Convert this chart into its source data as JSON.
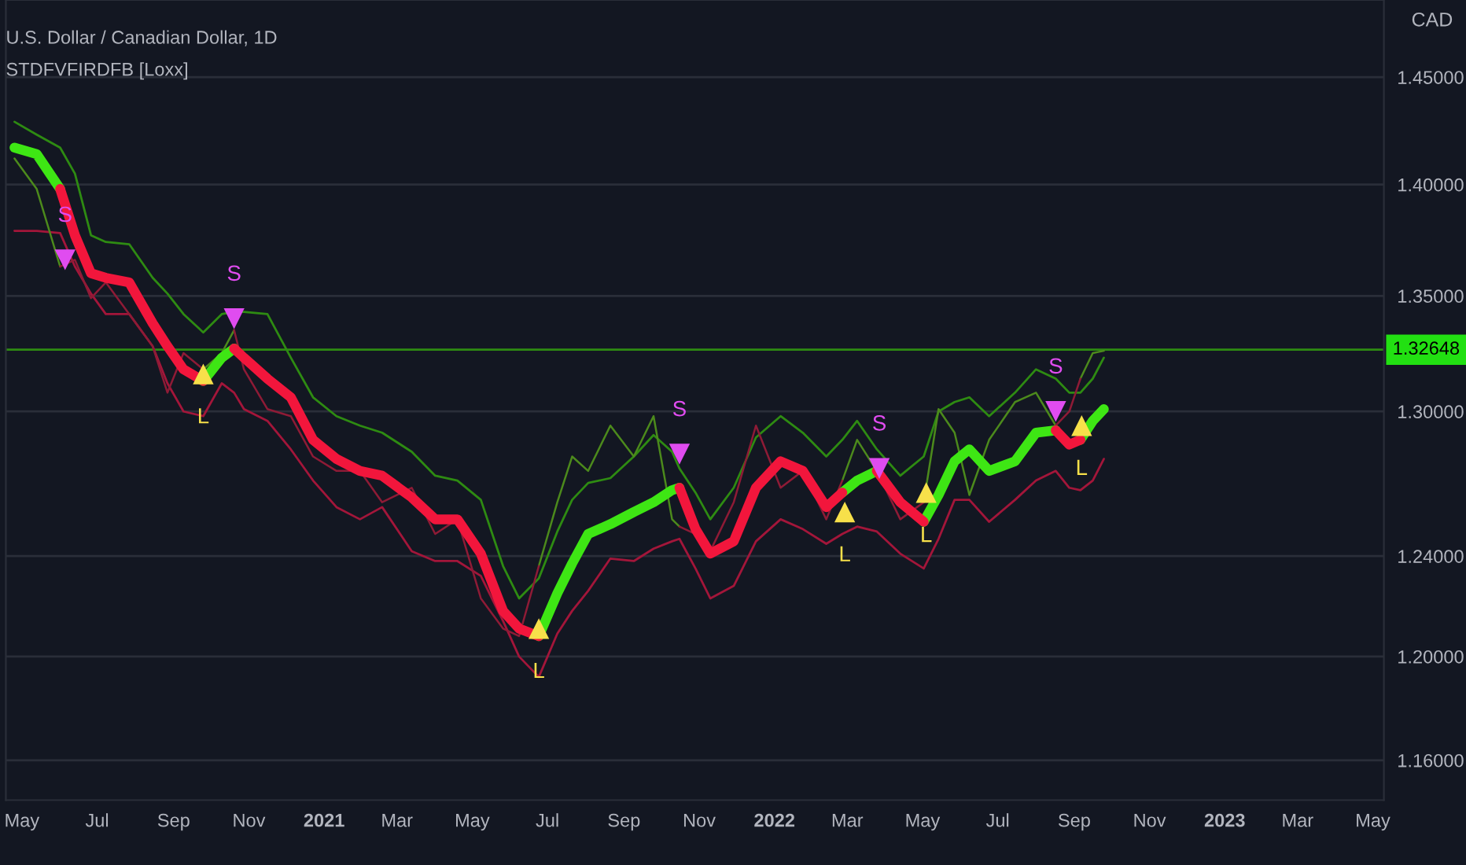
{
  "chart_data": {
    "type": "line",
    "title": "U.S. Dollar / Canadian Dollar, 1D",
    "subtitle": "STDFVFIRDFB [Loxx]",
    "ylabel": "CAD",
    "x": [
      "2020-04-25",
      "2020-05-13",
      "2020-06-01",
      "2020-06-13",
      "2020-06-26",
      "2020-07-08",
      "2020-07-27",
      "2020-08-15",
      "2020-08-27",
      "2020-09-09",
      "2020-09-25",
      "2020-10-10",
      "2020-10-20",
      "2020-10-28",
      "2020-11-16",
      "2020-12-05",
      "2020-12-23",
      "2021-01-11",
      "2021-01-30",
      "2021-02-17",
      "2021-03-13",
      "2021-04-01",
      "2021-04-19",
      "2021-05-08",
      "2021-05-26",
      "2021-06-08",
      "2021-06-24",
      "2021-07-09",
      "2021-07-21",
      "2021-08-03",
      "2021-08-21",
      "2021-09-09",
      "2021-09-25",
      "2021-10-10",
      "2021-10-16",
      "2021-10-29",
      "2021-11-10",
      "2021-11-29",
      "2021-12-17",
      "2022-01-06",
      "2022-01-24",
      "2022-02-12",
      "2022-02-25",
      "2022-03-09",
      "2022-03-25",
      "2022-04-13",
      "2022-05-02",
      "2022-05-14",
      "2022-05-27",
      "2022-06-08",
      "2022-06-24",
      "2022-07-15",
      "2022-08-01",
      "2022-08-17",
      "2022-08-28",
      "2022-09-06",
      "2022-09-16",
      "2022-09-25"
    ],
    "series": [
      {
        "color": "#2e8b12",
        "values": [
          1.429,
          1.423,
          1.417,
          1.405,
          1.377,
          1.374,
          1.373,
          1.358,
          1.351,
          1.342,
          1.334,
          1.342,
          1.343,
          1.343,
          1.342,
          1.323,
          1.306,
          1.298,
          1.294,
          1.291,
          1.283,
          1.273,
          1.271,
          1.263,
          1.236,
          1.223,
          1.231,
          1.25,
          1.263,
          1.27,
          1.272,
          1.281,
          1.29,
          1.283,
          1.276,
          1.266,
          1.255,
          1.268,
          1.289,
          1.298,
          1.291,
          1.281,
          1.288,
          1.296,
          1.284,
          1.273,
          1.281,
          1.3,
          1.304,
          1.306,
          1.298,
          1.308,
          1.318,
          1.314,
          1.308,
          1.308,
          1.314,
          1.323
        ]
      },
      {
        "color": "#a3163a",
        "values": [
          1.379,
          1.379,
          1.378,
          1.363,
          1.351,
          1.342,
          1.342,
          1.328,
          1.312,
          1.3,
          1.298,
          1.312,
          1.308,
          1.301,
          1.296,
          1.284,
          1.271,
          1.26,
          1.255,
          1.26,
          1.242,
          1.238,
          1.238,
          1.232,
          1.214,
          1.2,
          1.192,
          1.209,
          1.218,
          1.226,
          1.239,
          1.238,
          1.243,
          1.246,
          1.247,
          1.235,
          1.223,
          1.228,
          1.246,
          1.255,
          1.251,
          1.245,
          1.249,
          1.252,
          1.25,
          1.241,
          1.235,
          1.247,
          1.263,
          1.263,
          1.254,
          1.263,
          1.271,
          1.275,
          1.268,
          1.267,
          1.271,
          1.28
        ]
      },
      {
        "color": "#4c8a1c",
        "values": [
          1.412,
          1.398,
          1.363,
          null,
          null,
          null,
          null,
          null,
          null,
          null,
          1.318,
          1.325,
          1.335,
          null,
          null,
          null,
          null,
          null,
          null,
          null,
          null,
          null,
          null,
          null,
          null,
          null,
          1.236,
          1.262,
          1.281,
          1.275,
          1.294,
          1.281,
          1.298,
          1.255,
          1.252,
          null,
          null,
          null,
          null,
          null,
          null,
          null,
          1.271,
          1.288,
          1.275,
          null,
          1.262,
          1.301,
          1.291,
          1.265,
          1.288,
          1.304,
          1.308,
          1.294,
          null,
          1.314,
          1.325,
          1.326
        ]
      },
      {
        "color": "#8e1b36",
        "values": [
          null,
          null,
          1.363,
          1.366,
          1.349,
          1.356,
          1.342,
          1.328,
          1.308,
          1.325,
          1.318,
          null,
          1.335,
          1.318,
          1.301,
          1.298,
          1.281,
          1.275,
          1.275,
          1.262,
          1.268,
          1.249,
          1.255,
          1.223,
          1.211,
          1.208,
          1.236,
          null,
          null,
          null,
          null,
          null,
          null,
          null,
          1.252,
          1.249,
          1.242,
          1.262,
          1.294,
          1.268,
          1.275,
          1.255,
          1.271,
          null,
          1.275,
          1.255,
          1.262,
          null,
          null,
          null,
          null,
          null,
          null,
          1.294,
          1.3,
          1.314,
          null,
          null
        ]
      },
      {
        "color": "#3ee614",
        "values": [
          1.417,
          1.414,
          1.398,
          null,
          null,
          null,
          null,
          null,
          null,
          null,
          1.313,
          1.323,
          1.327,
          null,
          null,
          null,
          null,
          null,
          null,
          null,
          null,
          null,
          null,
          null,
          null,
          null,
          1.208,
          1.225,
          1.237,
          1.249,
          1.253,
          1.258,
          1.262,
          1.267,
          1.268,
          null,
          null,
          null,
          null,
          null,
          null,
          null,
          1.266,
          1.271,
          1.275,
          null,
          1.254,
          1.265,
          1.279,
          1.284,
          1.275,
          1.279,
          1.291,
          1.292,
          null,
          1.288,
          1.296,
          1.301
        ]
      },
      {
        "color": "#f2163c",
        "values": [
          null,
          null,
          1.398,
          1.377,
          1.36,
          1.358,
          1.356,
          1.338,
          1.328,
          1.318,
          1.313,
          null,
          1.327,
          1.323,
          1.314,
          1.306,
          1.288,
          1.28,
          1.275,
          1.273,
          1.264,
          1.255,
          1.255,
          1.241,
          1.218,
          1.211,
          1.208,
          null,
          null,
          null,
          null,
          null,
          null,
          null,
          1.268,
          1.251,
          1.241,
          1.246,
          1.268,
          1.279,
          1.275,
          1.26,
          1.266,
          null,
          1.275,
          1.262,
          1.254,
          null,
          null,
          null,
          null,
          null,
          null,
          1.292,
          1.286,
          1.288,
          null,
          null
        ]
      },
      {
        "type": "scatter",
        "marker": "triangle",
        "color": "#e04cf0",
        "x": [
          "2020-06-05",
          "2020-10-20",
          "2021-10-16",
          "2022-03-27",
          "2022-08-17"
        ],
        "values": [
          1.366,
          1.34,
          1.282,
          1.276,
          1.3
        ]
      },
      {
        "type": "scatter",
        "marker": "triangle",
        "color": "#f7e04a",
        "x": [
          "2020-09-25",
          "2021-06-24",
          "2022-02-27",
          "2022-05-04",
          "2022-09-07"
        ],
        "values": [
          1.316,
          1.211,
          1.258,
          1.266,
          1.294
        ]
      }
    ],
    "annotations": [
      {
        "text": "S",
        "x": "2020-06-05",
        "y": 1.366
      },
      {
        "text": "S",
        "x": "2020-10-20",
        "y": 1.34
      },
      {
        "text": "S",
        "x": "2021-10-16",
        "y": 1.282
      },
      {
        "text": "S",
        "x": "2022-03-27",
        "y": 1.276
      },
      {
        "text": "S",
        "x": "2022-08-17",
        "y": 1.3
      },
      {
        "text": "L",
        "x": "2020-09-25",
        "y": 1.316
      },
      {
        "text": "L",
        "x": "2021-06-24",
        "y": 1.211
      },
      {
        "text": "L",
        "x": "2022-02-27",
        "y": 1.258
      },
      {
        "text": "L",
        "x": "2022-05-04",
        "y": 1.266
      },
      {
        "text": "L",
        "x": "2022-09-07",
        "y": 1.294
      }
    ],
    "ref_lines": [
      {
        "axis": "y",
        "value": 1.32648,
        "label": "1.32648",
        "color": "#2e8b12"
      }
    ],
    "log": true,
    "ylim": [
      1.145,
      1.487
    ],
    "yticks": [
      {
        "value": 1.16,
        "label": "1.16000"
      },
      {
        "value": 1.2,
        "label": "1.20000"
      },
      {
        "value": 1.24,
        "label": "1.24000"
      },
      {
        "value": 1.3,
        "label": "1.30000"
      },
      {
        "value": 1.35,
        "label": "1.35000"
      },
      {
        "value": 1.4,
        "label": "1.40000"
      },
      {
        "value": 1.45,
        "label": "1.45000"
      }
    ],
    "xlim": [
      "2020-04-18",
      "2023-05-10"
    ],
    "xticks": [
      {
        "value": "2020-05-01",
        "label": "May"
      },
      {
        "value": "2020-07-01",
        "label": "Jul"
      },
      {
        "value": "2020-09-01",
        "label": "Sep"
      },
      {
        "value": "2020-11-01",
        "label": "Nov"
      },
      {
        "value": "2021-01-01",
        "label": "2021"
      },
      {
        "value": "2021-03-01",
        "label": "Mar"
      },
      {
        "value": "2021-05-01",
        "label": "May"
      },
      {
        "value": "2021-07-01",
        "label": "Jul"
      },
      {
        "value": "2021-09-01",
        "label": "Sep"
      },
      {
        "value": "2021-11-01",
        "label": "Nov"
      },
      {
        "value": "2022-01-01",
        "label": "2022"
      },
      {
        "value": "2022-03-01",
        "label": "Mar"
      },
      {
        "value": "2022-05-01",
        "label": "May"
      },
      {
        "value": "2022-07-01",
        "label": "Jul"
      },
      {
        "value": "2022-09-01",
        "label": "Sep"
      },
      {
        "value": "2022-11-01",
        "label": "Nov"
      },
      {
        "value": "2023-01-01",
        "label": "2023"
      },
      {
        "value": "2023-03-01",
        "label": "Mar"
      },
      {
        "value": "2023-05-01",
        "label": "May"
      }
    ],
    "grid": "y",
    "legend": false
  }
}
